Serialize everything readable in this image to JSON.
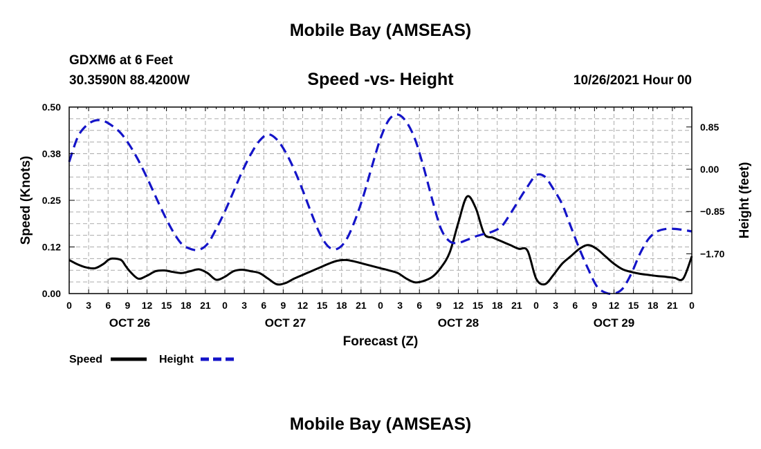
{
  "header": {
    "title": "Mobile Bay (AMSEAS)",
    "station": "GDXM6 at 6 Feet",
    "coords": "30.3590N  88.4200W",
    "subtitle": "Speed -vs- Height",
    "datetime": "10/26/2021 Hour 00"
  },
  "footer": {
    "title": "Mobile Bay (AMSEAS)"
  },
  "colors": {
    "speed": "#000000",
    "height": "#1414c8",
    "grid": "#aaaaaa"
  },
  "chart_data": {
    "type": "line",
    "title": "Speed -vs- Height",
    "xlabel": "Forecast (Z)",
    "ylabel": "Speed (Knots)",
    "y2label": "Height (feet)",
    "x_range": [
      0,
      72
    ],
    "ylim": [
      0,
      0.5
    ],
    "y2lim": [
      -2.5,
      1.25
    ],
    "y_ticks": [
      "0.00",
      "0.12",
      "0.25",
      "0.38",
      "0.50"
    ],
    "y_tick_values": [
      0,
      0.125,
      0.25,
      0.375,
      0.5
    ],
    "y2_ticks": [
      "0.85",
      "0.00",
      "−0.85",
      "−1.70"
    ],
    "y2_tick_values": [
      0.85,
      0,
      -0.85,
      -1.7
    ],
    "x_tick_labels": [
      "0",
      "3",
      "6",
      "9",
      "12",
      "15",
      "18",
      "21",
      "0",
      "3",
      "6",
      "9",
      "12",
      "15",
      "18",
      "21",
      "0",
      "3",
      "6",
      "9",
      "12",
      "15",
      "18",
      "21",
      "0",
      "3",
      "6",
      "9",
      "12",
      "15",
      "18",
      "21",
      "0"
    ],
    "day_labels": [
      {
        "label": "OCT 26",
        "hour": 7
      },
      {
        "label": "OCT 27",
        "hour": 25
      },
      {
        "label": "OCT 28",
        "hour": 45
      },
      {
        "label": "OCT 29",
        "hour": 63
      }
    ],
    "grid": true,
    "legend": [
      "Speed",
      "Height"
    ],
    "series": [
      {
        "name": "Speed",
        "style": "solid",
        "axis": "left",
        "x": [
          0,
          1,
          2,
          3,
          4,
          4.5,
          5,
          6,
          6.5,
          7,
          8,
          9,
          10,
          11,
          12,
          13,
          14,
          15,
          16,
          17,
          18,
          19,
          20,
          21,
          22,
          23,
          24,
          25,
          26,
          27,
          28,
          29,
          30,
          31,
          32,
          33,
          34,
          35,
          36,
          37,
          38,
          39,
          40,
          41,
          42,
          43,
          44,
          45,
          46,
          47,
          48,
          49,
          50,
          51,
          52,
          53,
          54,
          55,
          56,
          57,
          58,
          59,
          60,
          61,
          62,
          63,
          64,
          65,
          66,
          67,
          68,
          69,
          70,
          71,
          72
        ],
        "values": [
          0.09,
          0.078,
          0.07,
          0.068,
          0.08,
          0.09,
          0.094,
          0.09,
          0.075,
          0.06,
          0.04,
          0.048,
          0.06,
          0.062,
          0.058,
          0.055,
          0.06,
          0.065,
          0.055,
          0.037,
          0.045,
          0.06,
          0.064,
          0.06,
          0.055,
          0.04,
          0.025,
          0.028,
          0.04,
          0.05,
          0.06,
          0.07,
          0.08,
          0.088,
          0.09,
          0.086,
          0.08,
          0.074,
          0.068,
          0.062,
          0.055,
          0.04,
          0.03,
          0.034,
          0.045,
          0.07,
          0.11,
          0.19,
          0.26,
          0.23,
          0.16,
          0.15,
          0.14,
          0.13,
          0.12,
          0.115,
          0.04,
          0.025,
          0.05,
          0.08,
          0.1,
          0.12,
          0.13,
          0.12,
          0.1,
          0.08,
          0.065,
          0.058,
          0.053,
          0.05,
          0.047,
          0.045,
          0.042,
          0.04,
          0.1
        ]
      },
      {
        "name": "Height",
        "style": "dashed",
        "axis": "right",
        "x": [
          0,
          1,
          2,
          3,
          4,
          5,
          6,
          7,
          8,
          9,
          10,
          11,
          12,
          13,
          14,
          15,
          16,
          17,
          18,
          19,
          20,
          21,
          22,
          23,
          24,
          25,
          26,
          27,
          28,
          29,
          30,
          31,
          32,
          33,
          34,
          35,
          36,
          37,
          38,
          39,
          40,
          41,
          42,
          43,
          44,
          45,
          46,
          47,
          48,
          49,
          50,
          51,
          52,
          53,
          54,
          55,
          56,
          57,
          58,
          59,
          60,
          61,
          62,
          63,
          64,
          65,
          66,
          67,
          68,
          69,
          70,
          71,
          72
        ],
        "values": [
          0.15,
          0.65,
          0.88,
          0.98,
          0.97,
          0.87,
          0.72,
          0.48,
          0.18,
          -0.17,
          -0.55,
          -0.92,
          -1.25,
          -1.5,
          -1.6,
          -1.62,
          -1.5,
          -1.2,
          -0.85,
          -0.45,
          -0.05,
          0.3,
          0.57,
          0.7,
          0.6,
          0.35,
          0.0,
          -0.42,
          -0.88,
          -1.3,
          -1.56,
          -1.6,
          -1.43,
          -1.05,
          -0.55,
          0.05,
          0.62,
          1.0,
          1.1,
          0.95,
          0.6,
          0.03,
          -0.62,
          -1.2,
          -1.45,
          -1.48,
          -1.42,
          -1.35,
          -1.3,
          -1.25,
          -1.15,
          -0.9,
          -0.62,
          -0.35,
          -0.12,
          -0.15,
          -0.4,
          -0.7,
          -1.15,
          -1.6,
          -2.0,
          -2.35,
          -2.48,
          -2.5,
          -2.4,
          -2.1,
          -1.7,
          -1.4,
          -1.25,
          -1.2,
          -1.2,
          -1.22,
          -1.25
        ]
      }
    ]
  }
}
